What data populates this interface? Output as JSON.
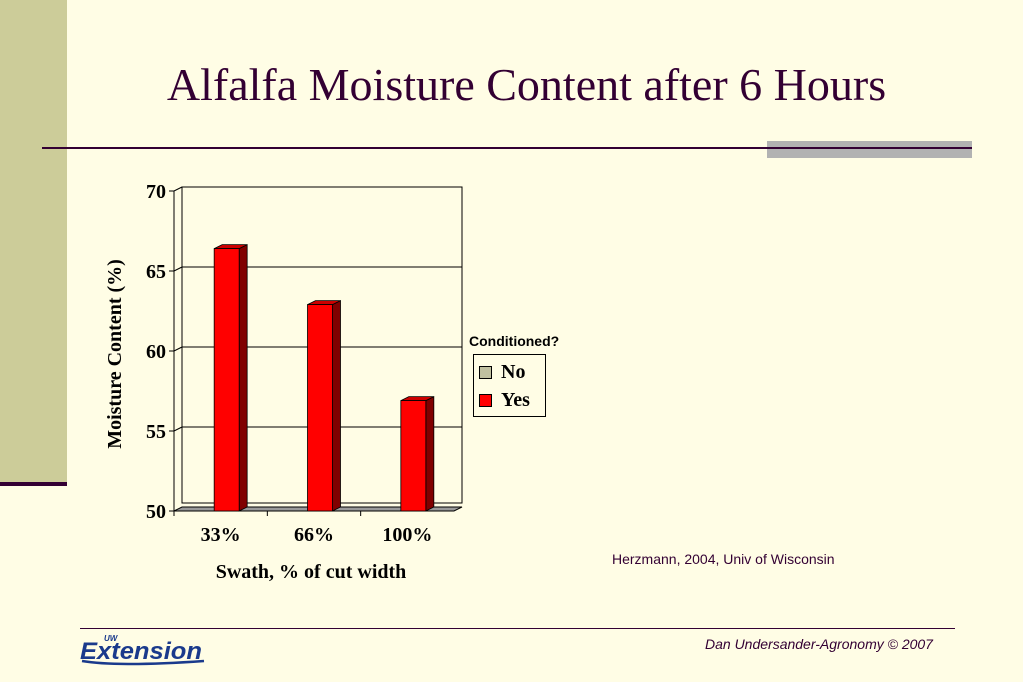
{
  "slide": {
    "title": "Alfalfa Moisture Content after 6 Hours",
    "source": "Herzmann, 2004, Univ of Wisconsin",
    "credit": "Dan  Undersander-Agronomy © 2007",
    "logo_text": "Extension",
    "logo_prefix": "UW"
  },
  "colors": {
    "background": "#fffde5",
    "title": "#330033",
    "strip": "#cccc99",
    "bar_yes": "#ff0000",
    "bar_yes_side": "#800000",
    "bar_no": "#c0c0a0",
    "logo_blue": "#1a3a8c"
  },
  "chart_data": {
    "type": "bar",
    "categories": [
      "33%",
      "66%",
      "100%"
    ],
    "series": [
      {
        "name": "No",
        "values": [
          null,
          null,
          null
        ]
      },
      {
        "name": "Yes",
        "values": [
          66.4,
          62.9,
          56.9
        ]
      }
    ],
    "ylim": [
      50,
      70
    ],
    "yticks": [
      "50",
      "55",
      "60",
      "65",
      "70"
    ],
    "xlabel": "Swath, % of cut width",
    "ylabel": "Moisture Content (%)",
    "legend_title": "Conditioned?",
    "legend_position": "right",
    "grid": true
  }
}
